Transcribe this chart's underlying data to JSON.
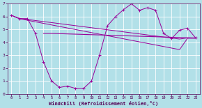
{
  "x": [
    0,
    1,
    2,
    3,
    4,
    5,
    6,
    7,
    8,
    9,
    10,
    11,
    12,
    13,
    14,
    15,
    16,
    17,
    18,
    19,
    20,
    21,
    22,
    23
  ],
  "line_zigzag": [
    6.1,
    5.85,
    5.85,
    4.7,
    2.5,
    1.0,
    0.5,
    0.6,
    0.42,
    0.42,
    1.0,
    3.0,
    5.3,
    6.0,
    6.55,
    7.0,
    6.5,
    6.7,
    6.5,
    4.7,
    4.3,
    4.95,
    5.1,
    4.35
  ],
  "line_upper": [
    6.1,
    5.85,
    5.78,
    5.7,
    5.62,
    5.54,
    5.46,
    5.38,
    5.3,
    5.22,
    5.14,
    5.06,
    4.98,
    4.9,
    4.82,
    4.74,
    4.66,
    4.58,
    4.5,
    4.42,
    4.34,
    4.26,
    4.35,
    4.35
  ],
  "line_lower": [
    6.1,
    5.85,
    5.72,
    5.6,
    5.48,
    5.36,
    5.24,
    5.12,
    5.0,
    4.88,
    4.76,
    4.64,
    4.52,
    4.4,
    4.28,
    4.16,
    4.04,
    3.92,
    3.8,
    3.68,
    3.56,
    3.44,
    4.32,
    4.32
  ],
  "line_flat": [
    4.7,
    4.7,
    4.68,
    4.66,
    4.64,
    4.62,
    4.6,
    4.58,
    4.56,
    4.54,
    4.52,
    4.5,
    4.48,
    4.46,
    4.44,
    4.42,
    4.4,
    4.38,
    4.36,
    4.34
  ],
  "flat_x_start": 4,
  "color_main": "#990099",
  "bg_color": "#b2e0e8",
  "grid_color": "#ffffff",
  "xlabel": "Windchill (Refroidissement éolien,°C)",
  "ylim": [
    0,
    7
  ],
  "xlim": [
    -0.5,
    23.5
  ],
  "yticks": [
    0,
    1,
    2,
    3,
    4,
    5,
    6,
    7
  ],
  "xticks": [
    0,
    1,
    2,
    3,
    4,
    5,
    6,
    7,
    8,
    9,
    10,
    11,
    12,
    13,
    14,
    15,
    16,
    17,
    18,
    19,
    20,
    21,
    22,
    23
  ]
}
